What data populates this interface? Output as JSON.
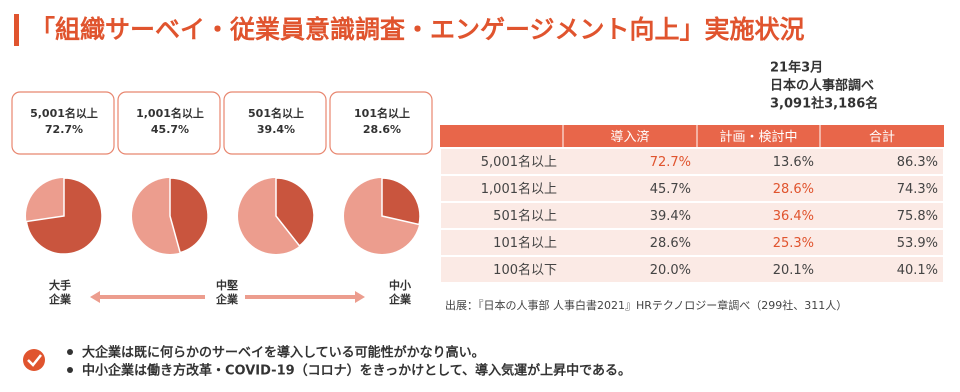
{
  "title": "「組織サーベイ・従業員意識調査・エンゲージメント向上」実施状況",
  "meta": [
    "21年3月",
    "日本の人事部調べ",
    "3,091社3,186名"
  ],
  "cards": [
    {
      "label": "5,001名以上",
      "value": 72.7,
      "value_label": "72.7%"
    },
    {
      "label": "1,001名以上",
      "value": 45.7,
      "value_label": "45.7%"
    },
    {
      "label": "501名以上",
      "value": 39.4,
      "value_label": "39.4%"
    },
    {
      "label": "101名以上",
      "value": 28.6,
      "value_label": "28.6%"
    }
  ],
  "pie_colors": {
    "value": "#c9553e",
    "rest": "#ec9d8e"
  },
  "scale": {
    "left": [
      "大手",
      "企業"
    ],
    "middle": [
      "中堅",
      "企業"
    ],
    "right": [
      "中小",
      "企業"
    ]
  },
  "table": {
    "header": [
      "導入済",
      "計画・検討中",
      "合計"
    ],
    "rows": [
      {
        "cells": [
          "5,001名以上",
          "72.7%",
          "13.6%",
          "86.3%"
        ],
        "highlight": 1
      },
      {
        "cells": [
          "1,001名以上",
          "45.7%",
          "28.6%",
          "74.3%"
        ],
        "highlight": 2
      },
      {
        "cells": [
          "501名以上",
          "39.4%",
          "36.4%",
          "75.8%"
        ],
        "highlight": 2
      },
      {
        "cells": [
          "101名以上",
          "28.6%",
          "25.3%",
          "53.9%"
        ],
        "highlight": 2
      },
      {
        "cells": [
          "100名以下",
          "20.0%",
          "20.1%",
          "40.1%"
        ],
        "highlight": null
      }
    ]
  },
  "source": "出展：『日本の人事部 人事白書2021』HRテクノロジー章調べ（299社、311人）",
  "bullets": [
    "大企業は既に何らかのサーベイを導入している可能性がかなり高い。",
    "中小企業は働き方改革・COVID-19（コロナ）をきっかけとして、導入気運が上昇中である。"
  ]
}
